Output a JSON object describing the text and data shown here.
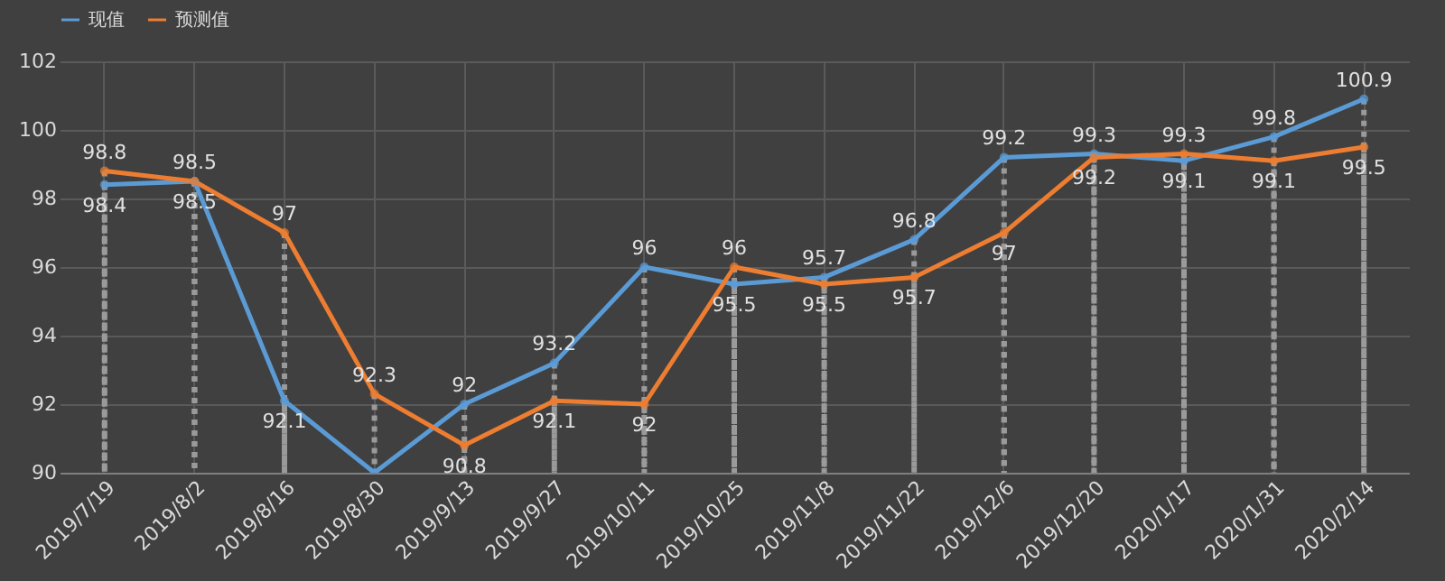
{
  "chart_data": {
    "type": "line",
    "categories": [
      "2019/7/19",
      "2019/8/2",
      "2019/8/16",
      "2019/8/30",
      "2019/9/13",
      "2019/9/27",
      "2019/10/11",
      "2019/10/25",
      "2019/11/8",
      "2019/11/22",
      "2019/12/6",
      "2019/12/20",
      "2020/1/17",
      "2020/1/31",
      "2020/2/14"
    ],
    "series": [
      {
        "name": "现值",
        "color": "#5b9bd5",
        "values": [
          98.4,
          98.5,
          92.1,
          90,
          92,
          93.2,
          96,
          95.5,
          95.7,
          96.8,
          99.2,
          99.3,
          99.1,
          99.8,
          100.9
        ],
        "value_labels": [
          "98.4",
          "98.5",
          "92.1",
          null,
          "92",
          "93.2",
          "96",
          "95.5",
          "95.7",
          "96.8",
          "99.2",
          "99.3",
          "99.1",
          "99.8",
          "100.9"
        ]
      },
      {
        "name": "预测值",
        "color": "#ed7d31",
        "values": [
          98.8,
          98.5,
          97,
          92.3,
          90.8,
          92.1,
          92,
          96,
          95.5,
          95.7,
          97,
          99.2,
          99.3,
          99.1,
          99.5
        ],
        "value_labels": [
          "98.8",
          "98.5",
          "97",
          "92.3",
          "90.8",
          "92.1",
          "92",
          "96",
          "95.5",
          "95.7",
          "97",
          "99.2",
          "99.3",
          "99.1",
          "99.5"
        ]
      }
    ],
    "ylim": [
      90,
      102
    ],
    "yticks": [
      90,
      92,
      94,
      96,
      98,
      100,
      102
    ],
    "grid": true,
    "legend": "top",
    "marker": "circle",
    "line_style": "solid"
  }
}
